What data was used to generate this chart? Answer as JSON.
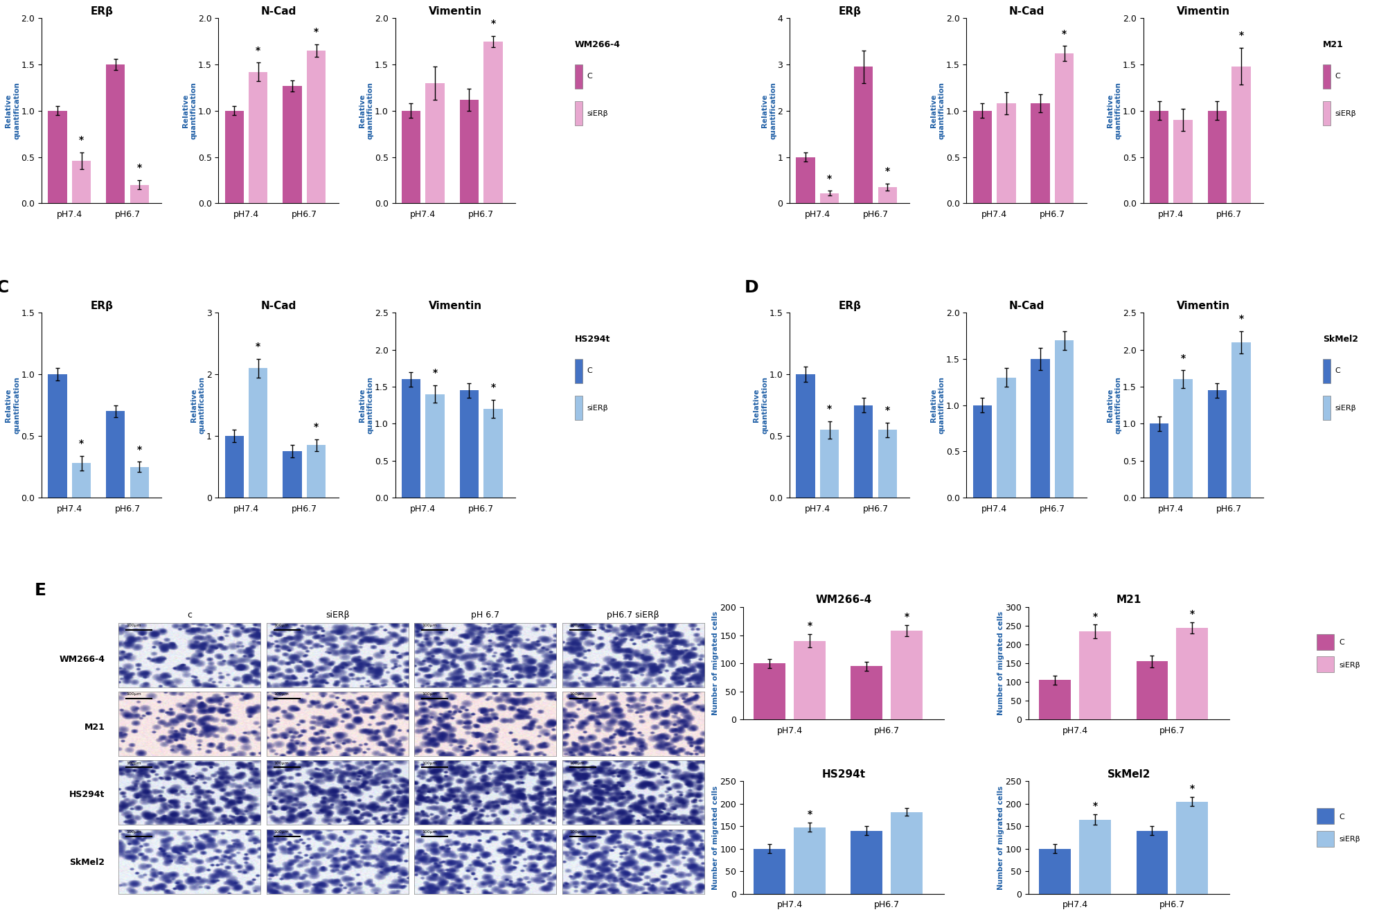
{
  "panel_A": {
    "title": "WM266-4",
    "color_C": "#c0559a",
    "color_siER": "#e8a8d0",
    "plots": {
      "ERb": {
        "title": "ERβ",
        "ylim": [
          0,
          2
        ],
        "yticks": [
          0,
          0.5,
          1,
          1.5,
          2
        ],
        "C_pH74": 1.0,
        "C_pH74_err": 0.05,
        "siER_pH74": 0.46,
        "siER_pH74_err": 0.09,
        "C_pH67": 1.5,
        "C_pH67_err": 0.06,
        "siER_pH67": 0.2,
        "siER_pH67_err": 0.05,
        "stars": [
          false,
          true,
          false,
          true
        ]
      },
      "NCad": {
        "title": "N-Cad",
        "ylim": [
          0,
          2
        ],
        "yticks": [
          0,
          0.5,
          1,
          1.5,
          2
        ],
        "C_pH74": 1.0,
        "C_pH74_err": 0.05,
        "siER_pH74": 1.42,
        "siER_pH74_err": 0.1,
        "C_pH67": 1.27,
        "C_pH67_err": 0.06,
        "siER_pH67": 1.65,
        "siER_pH67_err": 0.07,
        "stars": [
          false,
          true,
          false,
          true
        ]
      },
      "Vimentin": {
        "title": "Vimentin",
        "ylim": [
          0,
          2
        ],
        "yticks": [
          0,
          0.5,
          1,
          1.5,
          2
        ],
        "C_pH74": 1.0,
        "C_pH74_err": 0.08,
        "siER_pH74": 1.3,
        "siER_pH74_err": 0.18,
        "C_pH67": 1.12,
        "C_pH67_err": 0.12,
        "siER_pH67": 1.75,
        "siER_pH67_err": 0.06,
        "stars": [
          false,
          false,
          false,
          true
        ]
      }
    }
  },
  "panel_B": {
    "title": "M21",
    "color_C": "#c0559a",
    "color_siER": "#e8a8d0",
    "plots": {
      "ERb": {
        "title": "ERβ",
        "ylim": [
          0,
          4
        ],
        "yticks": [
          0,
          1,
          2,
          3,
          4
        ],
        "C_pH74": 1.0,
        "C_pH74_err": 0.1,
        "siER_pH74": 0.22,
        "siER_pH74_err": 0.05,
        "C_pH67": 2.95,
        "C_pH67_err": 0.35,
        "siER_pH67": 0.35,
        "siER_pH67_err": 0.08,
        "stars": [
          false,
          true,
          false,
          true
        ]
      },
      "NCad": {
        "title": "N-Cad",
        "ylim": [
          0,
          2
        ],
        "yticks": [
          0,
          0.5,
          1,
          1.5,
          2
        ],
        "C_pH74": 1.0,
        "C_pH74_err": 0.08,
        "siER_pH74": 1.08,
        "siER_pH74_err": 0.12,
        "C_pH67": 1.08,
        "C_pH67_err": 0.1,
        "siER_pH67": 1.62,
        "siER_pH67_err": 0.08,
        "stars": [
          false,
          false,
          false,
          true
        ]
      },
      "Vimentin": {
        "title": "Vimentin",
        "ylim": [
          0,
          2
        ],
        "yticks": [
          0,
          0.5,
          1,
          1.5,
          2
        ],
        "C_pH74": 1.0,
        "C_pH74_err": 0.1,
        "siER_pH74": 0.9,
        "siER_pH74_err": 0.12,
        "C_pH67": 1.0,
        "C_pH67_err": 0.1,
        "siER_pH67": 1.48,
        "siER_pH67_err": 0.2,
        "stars": [
          false,
          false,
          false,
          true
        ]
      }
    }
  },
  "panel_C": {
    "title": "HS294t",
    "color_C": "#4472c4",
    "color_siER": "#9dc3e6",
    "plots": {
      "ERb": {
        "title": "ERβ",
        "ylim": [
          0,
          1.5
        ],
        "yticks": [
          0,
          0.5,
          1,
          1.5
        ],
        "C_pH74": 1.0,
        "C_pH74_err": 0.05,
        "siER_pH74": 0.28,
        "siER_pH74_err": 0.06,
        "C_pH67": 0.7,
        "C_pH67_err": 0.05,
        "siER_pH67": 0.25,
        "siER_pH67_err": 0.04,
        "stars": [
          false,
          true,
          false,
          true
        ]
      },
      "NCad": {
        "title": "N-Cad",
        "ylim": [
          0,
          3
        ],
        "yticks": [
          0,
          1,
          2,
          3
        ],
        "C_pH74": 1.0,
        "C_pH74_err": 0.1,
        "siER_pH74": 2.1,
        "siER_pH74_err": 0.15,
        "C_pH67": 0.75,
        "C_pH67_err": 0.1,
        "siER_pH67": 0.85,
        "siER_pH67_err": 0.1,
        "stars": [
          false,
          true,
          false,
          true
        ]
      },
      "Vimentin": {
        "title": "Vimentin",
        "ylim": [
          0,
          2.5
        ],
        "yticks": [
          0,
          0.5,
          1,
          1.5,
          2,
          2.5
        ],
        "C_pH74": 1.6,
        "C_pH74_err": 0.1,
        "siER_pH74": 1.4,
        "siER_pH74_err": 0.12,
        "C_pH67": 1.45,
        "C_pH67_err": 0.1,
        "siER_pH67": 1.2,
        "siER_pH67_err": 0.12,
        "stars": [
          false,
          true,
          false,
          true
        ]
      }
    }
  },
  "panel_D": {
    "title": "SkMel2",
    "color_C": "#4472c4",
    "color_siER": "#9dc3e6",
    "plots": {
      "ERb": {
        "title": "ERβ",
        "ylim": [
          0,
          1.5
        ],
        "yticks": [
          0,
          0.5,
          1,
          1.5
        ],
        "C_pH74": 1.0,
        "C_pH74_err": 0.06,
        "siER_pH74": 0.55,
        "siER_pH74_err": 0.07,
        "C_pH67": 0.75,
        "C_pH67_err": 0.06,
        "siER_pH67": 0.55,
        "siER_pH67_err": 0.06,
        "stars": [
          false,
          true,
          false,
          true
        ]
      },
      "NCad": {
        "title": "N-Cad",
        "ylim": [
          0,
          2
        ],
        "yticks": [
          0,
          0.5,
          1,
          1.5,
          2
        ],
        "C_pH74": 1.0,
        "C_pH74_err": 0.08,
        "siER_pH74": 1.3,
        "siER_pH74_err": 0.1,
        "C_pH67": 1.5,
        "C_pH67_err": 0.12,
        "siER_pH67": 1.7,
        "siER_pH67_err": 0.1,
        "stars": [
          false,
          false,
          false,
          false
        ]
      },
      "Vimentin": {
        "title": "Vimentin",
        "ylim": [
          0,
          2.5
        ],
        "yticks": [
          0,
          0.5,
          1,
          1.5,
          2,
          2.5
        ],
        "C_pH74": 1.0,
        "C_pH74_err": 0.1,
        "siER_pH74": 1.6,
        "siER_pH74_err": 0.12,
        "C_pH67": 1.45,
        "C_pH67_err": 0.1,
        "siER_pH67": 2.1,
        "siER_pH67_err": 0.15,
        "stars": [
          false,
          true,
          false,
          true
        ]
      }
    }
  },
  "panel_E_migration": {
    "WM2664": {
      "title": "WM266-4",
      "color_C": "#c0559a",
      "color_siER": "#e8a8d0",
      "ylim": [
        0,
        200
      ],
      "yticks": [
        0,
        50,
        100,
        150,
        200
      ],
      "C_pH74": 100,
      "C_pH74_err": 8,
      "siER_pH74": 140,
      "siER_pH74_err": 12,
      "C_pH67": 95,
      "C_pH67_err": 8,
      "siER_pH67": 158,
      "siER_pH67_err": 10,
      "stars": [
        false,
        true,
        false,
        true
      ]
    },
    "M21": {
      "title": "M21",
      "color_C": "#c0559a",
      "color_siER": "#e8a8d0",
      "ylim": [
        0,
        300
      ],
      "yticks": [
        0,
        50,
        100,
        150,
        200,
        250,
        300
      ],
      "C_pH74": 105,
      "C_pH74_err": 12,
      "siER_pH74": 235,
      "siER_pH74_err": 18,
      "C_pH67": 155,
      "C_pH67_err": 15,
      "siER_pH67": 245,
      "siER_pH67_err": 15,
      "stars": [
        false,
        true,
        false,
        true
      ]
    },
    "HS294t": {
      "title": "HS294t",
      "color_C": "#4472c4",
      "color_siER": "#9dc3e6",
      "ylim": [
        0,
        250
      ],
      "yticks": [
        0,
        50,
        100,
        150,
        200,
        250
      ],
      "C_pH74": 100,
      "C_pH74_err": 10,
      "siER_pH74": 148,
      "siER_pH74_err": 10,
      "C_pH67": 140,
      "C_pH67_err": 10,
      "siER_pH67": 182,
      "siER_pH67_err": 8,
      "stars": [
        false,
        true,
        false,
        false
      ]
    },
    "SkMel2": {
      "title": "SkMel2",
      "color_C": "#4472c4",
      "color_siER": "#9dc3e6",
      "ylim": [
        0,
        250
      ],
      "yticks": [
        0,
        50,
        100,
        150,
        200,
        250
      ],
      "C_pH74": 100,
      "C_pH74_err": 10,
      "siER_pH74": 165,
      "siER_pH74_err": 12,
      "C_pH67": 140,
      "C_pH67_err": 10,
      "siER_pH67": 205,
      "siER_pH67_err": 10,
      "stars": [
        false,
        true,
        false,
        true
      ]
    }
  },
  "bg_color": "#ffffff",
  "ylabel_color": "#1f5fa6",
  "title_fontsize": 11,
  "tick_fontsize": 9,
  "xlabel_groups": [
    "pH7.4",
    "pH6.7"
  ],
  "img_conditions": [
    "c",
    "siERβ",
    "pH 6.7",
    "pH6.7 siERβ"
  ],
  "img_cell_lines": [
    "WM266-4",
    "M21",
    "HS294t",
    "SkMel2"
  ],
  "img_colors_wm": [
    [
      [
        0.85,
        0.88,
        0.95
      ],
      [
        0.2,
        0.25,
        0.55
      ]
    ],
    [
      [
        0.92,
        0.88,
        0.95
      ],
      [
        0.15,
        0.18,
        0.5
      ]
    ],
    [
      [
        0.88,
        0.85,
        0.92
      ],
      [
        0.18,
        0.22,
        0.52
      ]
    ],
    [
      [
        0.85,
        0.88,
        0.95
      ],
      [
        0.2,
        0.25,
        0.55
      ]
    ]
  ],
  "img_colors_m21": [
    [
      [
        0.95,
        0.85,
        0.85
      ],
      [
        0.15,
        0.18,
        0.55
      ]
    ],
    [
      [
        0.95,
        0.88,
        0.88
      ],
      [
        0.15,
        0.18,
        0.5
      ]
    ],
    [
      [
        0.95,
        0.85,
        0.85
      ],
      [
        0.15,
        0.18,
        0.55
      ]
    ],
    [
      [
        0.92,
        0.85,
        0.85
      ],
      [
        0.15,
        0.18,
        0.52
      ]
    ]
  ]
}
